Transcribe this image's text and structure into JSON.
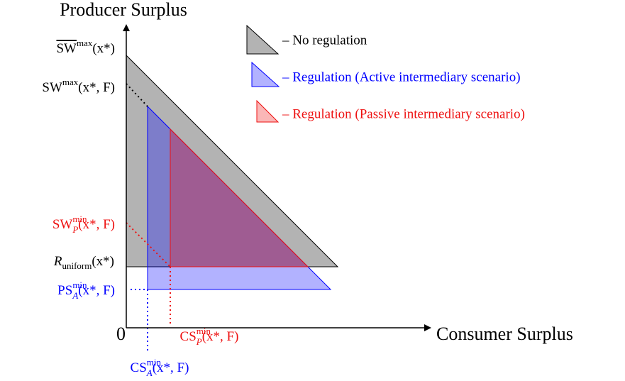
{
  "axes": {
    "y_label": "Producer Surplus",
    "x_label": "Consumer Surplus",
    "origin": "0"
  },
  "legend": [
    {
      "text": "– No regulation",
      "color": "#000000"
    },
    {
      "text": "– Regulation (Active intermediary scenario)",
      "color": "#0000ff"
    },
    {
      "text": "– Regulation (Passive intermediary scenario)",
      "color": "#ee1111"
    }
  ],
  "y_labels": [
    {
      "base": "SW",
      "overline": true,
      "sup": "max",
      "arg": "(x*)",
      "color": "#000000"
    },
    {
      "base": "SW",
      "sup": "max",
      "arg": "(x*, F)",
      "color": "#000000"
    },
    {
      "base": "SW",
      "sup": "min",
      "sub": "P",
      "arg": "(x*, F)",
      "color": "#ee1111"
    },
    {
      "base": "R",
      "sub": "uniform",
      "arg": "(x*)",
      "color": "#000000"
    },
    {
      "base": "PS",
      "sup": "min",
      "sub": "A",
      "arg": "(x*, F)",
      "color": "#0000ff"
    }
  ],
  "x_labels": [
    {
      "base": "CS",
      "sup": "min",
      "sub": "P",
      "arg": "(x*, F)",
      "color": "#ee1111"
    },
    {
      "base": "CS",
      "sup": "min",
      "sub": "A",
      "arg": "(x*, F)",
      "color": "#0000ff"
    }
  ]
}
